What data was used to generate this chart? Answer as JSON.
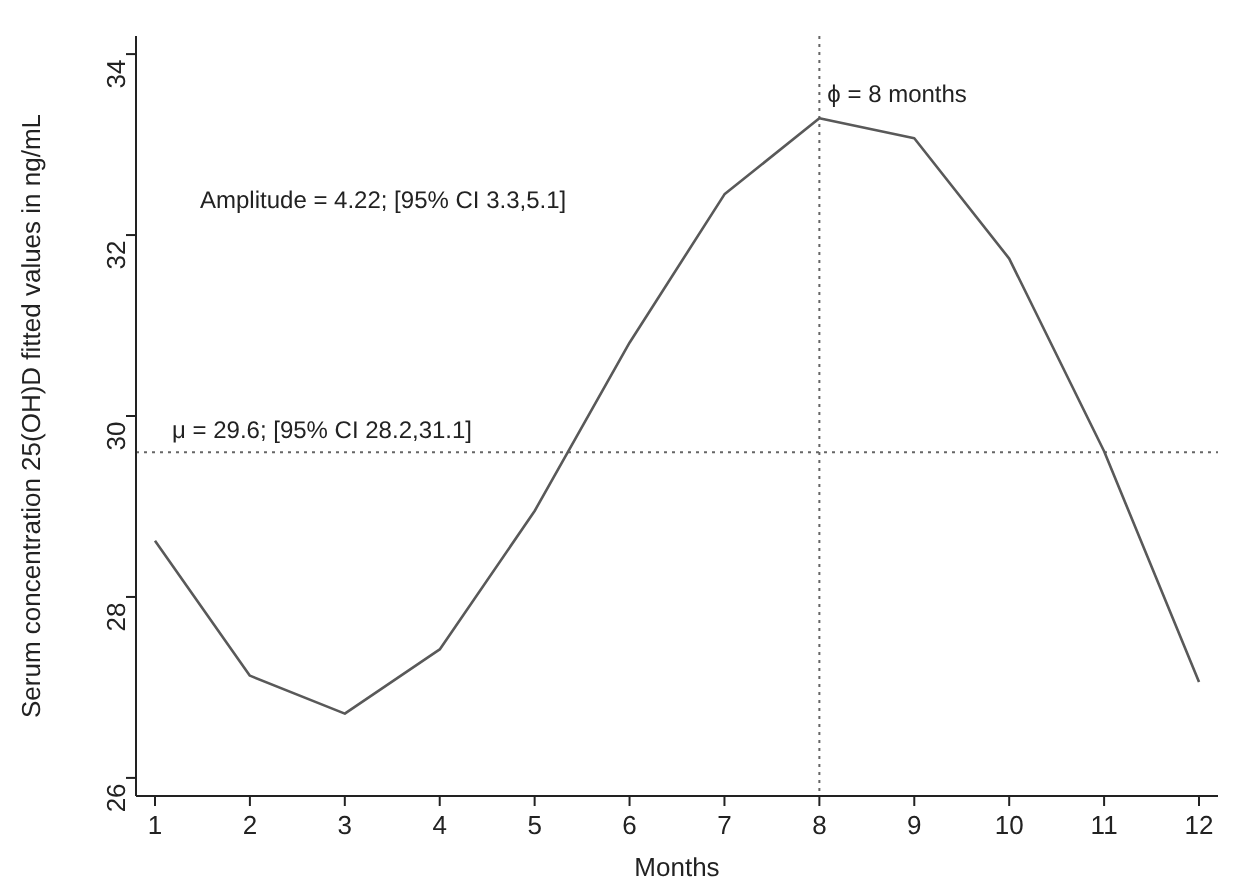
{
  "chart_data": {
    "type": "line",
    "xlabel": "Months",
    "ylabel": "Serum concentration 25(OH)D fitted values in ng/mL",
    "x": [
      1,
      2,
      3,
      4,
      5,
      6,
      7,
      8,
      9,
      10,
      11,
      12
    ],
    "series": [
      {
        "color": "#595959",
        "values": [
          28.62,
          27.13,
          26.71,
          27.42,
          28.95,
          30.81,
          32.45,
          33.29,
          33.07,
          31.74,
          29.61,
          27.06
        ]
      }
    ],
    "xlim": [
      0.8,
      12.2
    ],
    "xticks": [
      1,
      2,
      3,
      4,
      5,
      6,
      7,
      8,
      9,
      10,
      11,
      12
    ],
    "ylim": [
      25.8,
      34.2
    ],
    "yticks": [
      26,
      28,
      30,
      32,
      34
    ],
    "ref_lines": [
      {
        "axis": "y",
        "value": 29.6,
        "label": "μ = 29.6; [95% CI 28.2,31.1]",
        "line_style": "dotted",
        "color": "#666666"
      },
      {
        "axis": "x",
        "value": 8,
        "label": "ϕ = 8 months",
        "line_style": "dotted",
        "color": "#666666"
      }
    ],
    "annotations": [
      "Amplitude = 4.22; [95% CI 3.3,5.1]"
    ],
    "grid": false,
    "marker": "none",
    "line_style": "solid"
  }
}
